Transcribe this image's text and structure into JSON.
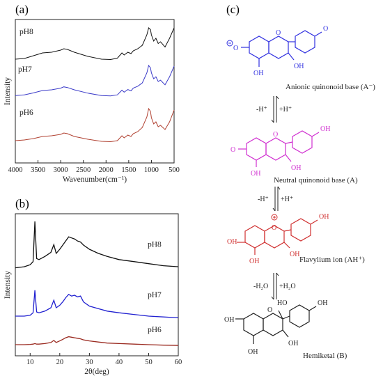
{
  "panels": {
    "a": {
      "label": "(a)"
    },
    "b": {
      "label": "(b)"
    },
    "c": {
      "label": "(c)"
    }
  },
  "chart_data": [
    {
      "type": "line",
      "panel": "(a)",
      "title": "",
      "xlabel": "Wavenumber(cm⁻¹)",
      "ylabel": "Intensity",
      "xlim": [
        4000,
        500
      ],
      "x_reversed": true,
      "x_ticks": [
        "4000",
        "3500",
        "3000",
        "2500",
        "2000",
        "1500",
        "1000",
        "500"
      ],
      "y_ticks_visible": false,
      "grid": false,
      "series": [
        {
          "name": "pH8",
          "color": "#111111",
          "x": [
            4000,
            3800,
            3600,
            3400,
            3200,
            3000,
            2930,
            2850,
            2700,
            2400,
            2100,
            1900,
            1750,
            1650,
            1600,
            1520,
            1450,
            1400,
            1300,
            1200,
            1100,
            1060,
            1020,
            1000,
            950,
            900,
            850,
            800,
            700,
            600,
            500
          ],
          "y": [
            0.1,
            0.12,
            0.2,
            0.28,
            0.3,
            0.36,
            0.4,
            0.38,
            0.3,
            0.18,
            0.1,
            0.09,
            0.13,
            0.28,
            0.22,
            0.3,
            0.26,
            0.34,
            0.4,
            0.5,
            0.8,
            1.0,
            0.95,
            0.8,
            0.62,
            0.7,
            0.55,
            0.6,
            0.45,
            0.7,
            1.0
          ]
        },
        {
          "name": "pH7",
          "color": "#3a3ac8",
          "x": [
            4000,
            3800,
            3600,
            3400,
            3200,
            3000,
            2930,
            2850,
            2700,
            2400,
            2100,
            1900,
            1750,
            1650,
            1600,
            1520,
            1450,
            1400,
            1300,
            1200,
            1100,
            1060,
            1020,
            1000,
            950,
            900,
            850,
            800,
            700,
            600,
            500
          ],
          "y": [
            0.1,
            0.12,
            0.18,
            0.25,
            0.27,
            0.32,
            0.36,
            0.34,
            0.27,
            0.17,
            0.1,
            0.09,
            0.12,
            0.26,
            0.2,
            0.28,
            0.24,
            0.32,
            0.38,
            0.48,
            0.78,
            1.0,
            0.93,
            0.78,
            0.6,
            0.66,
            0.52,
            0.56,
            0.42,
            0.66,
            0.98
          ]
        },
        {
          "name": "pH6",
          "color": "#b04030",
          "x": [
            4000,
            3800,
            3600,
            3400,
            3200,
            3000,
            2930,
            2850,
            2700,
            2400,
            2100,
            1900,
            1750,
            1650,
            1600,
            1520,
            1450,
            1400,
            1300,
            1200,
            1100,
            1060,
            1020,
            1000,
            950,
            900,
            850,
            800,
            700,
            600,
            500
          ],
          "y": [
            0.08,
            0.1,
            0.14,
            0.2,
            0.22,
            0.26,
            0.3,
            0.28,
            0.2,
            0.12,
            0.06,
            0.05,
            0.08,
            0.22,
            0.16,
            0.24,
            0.2,
            0.28,
            0.34,
            0.46,
            0.76,
            1.0,
            0.92,
            0.74,
            0.56,
            0.62,
            0.48,
            0.52,
            0.4,
            0.62,
            0.96
          ]
        }
      ]
    },
    {
      "type": "line",
      "panel": "(b)",
      "title": "",
      "xlabel": "2θ(deg)",
      "ylabel": "Intensity",
      "xlim": [
        5,
        60
      ],
      "x_ticks": [
        "10",
        "20",
        "30",
        "40",
        "50",
        "60"
      ],
      "y_ticks_visible": false,
      "grid": false,
      "series": [
        {
          "name": "pH8",
          "color": "#111111",
          "x": [
            5,
            8,
            10,
            11,
            11.6,
            12.2,
            13,
            15,
            17,
            18,
            18.8,
            20,
            21,
            22,
            23,
            24,
            25,
            26,
            27,
            28,
            30,
            33,
            36,
            40,
            45,
            50,
            55,
            60
          ],
          "y": [
            0.1,
            0.12,
            0.16,
            0.22,
            1.0,
            0.28,
            0.26,
            0.32,
            0.4,
            0.55,
            0.38,
            0.46,
            0.54,
            0.62,
            0.7,
            0.68,
            0.66,
            0.62,
            0.6,
            0.54,
            0.46,
            0.38,
            0.32,
            0.26,
            0.22,
            0.18,
            0.14,
            0.12
          ]
        },
        {
          "name": "pH7",
          "color": "#2020d0",
          "x": [
            5,
            8,
            10,
            11,
            11.6,
            12.2,
            13,
            15,
            17,
            18,
            18.8,
            20,
            21,
            22,
            23,
            24,
            25,
            26,
            27,
            28,
            30,
            33,
            36,
            40,
            45,
            50,
            55,
            60
          ],
          "y": [
            0.1,
            0.1,
            0.12,
            0.18,
            0.72,
            0.2,
            0.18,
            0.22,
            0.3,
            0.48,
            0.3,
            0.36,
            0.44,
            0.54,
            0.62,
            0.58,
            0.6,
            0.56,
            0.58,
            0.44,
            0.34,
            0.28,
            0.22,
            0.18,
            0.14,
            0.1,
            0.08,
            0.06
          ]
        },
        {
          "name": "pH6",
          "color": "#9a2a20",
          "x": [
            5,
            8,
            10,
            11,
            11.6,
            12.2,
            13,
            15,
            17,
            18,
            18.8,
            20,
            21,
            22,
            23,
            24,
            25,
            26,
            27,
            28,
            30,
            33,
            36,
            40,
            45,
            50,
            55,
            60
          ],
          "y": [
            0.08,
            0.08,
            0.09,
            0.1,
            0.12,
            0.1,
            0.1,
            0.12,
            0.16,
            0.24,
            0.16,
            0.22,
            0.28,
            0.34,
            0.38,
            0.36,
            0.34,
            0.32,
            0.3,
            0.26,
            0.22,
            0.18,
            0.14,
            0.12,
            0.1,
            0.08,
            0.06,
            0.05
          ]
        }
      ]
    }
  ],
  "scheme": {
    "structures": [
      {
        "name": "anionic",
        "caption": "Anionic quinonoid base (A⁻)",
        "color": "#3030e0",
        "atoms": [
          "O",
          "O",
          "OH",
          "OH",
          "O"
        ]
      },
      {
        "name": "neutral",
        "caption": "Neutral quinonoid base (A)",
        "color": "#d030d0",
        "atoms": [
          "O",
          "O",
          "OH",
          "OH",
          "OH"
        ]
      },
      {
        "name": "flavylium",
        "caption": "Flavylium ion (AH⁺)",
        "color": "#d03030",
        "atoms": [
          "OH",
          "O",
          "OH",
          "OH",
          "OH"
        ]
      },
      {
        "name": "hemiketal",
        "caption": "Hemiketal (B)",
        "color": "#222222",
        "atoms": [
          "OH",
          "O",
          "HO",
          "OH",
          "OH",
          "OH"
        ]
      }
    ],
    "arrows": [
      {
        "left": "-H⁺",
        "right": "+H⁺"
      },
      {
        "left": "-H⁺",
        "right": "+H⁺"
      },
      {
        "left": "-H₂O",
        "right": "+H₂O"
      }
    ]
  }
}
